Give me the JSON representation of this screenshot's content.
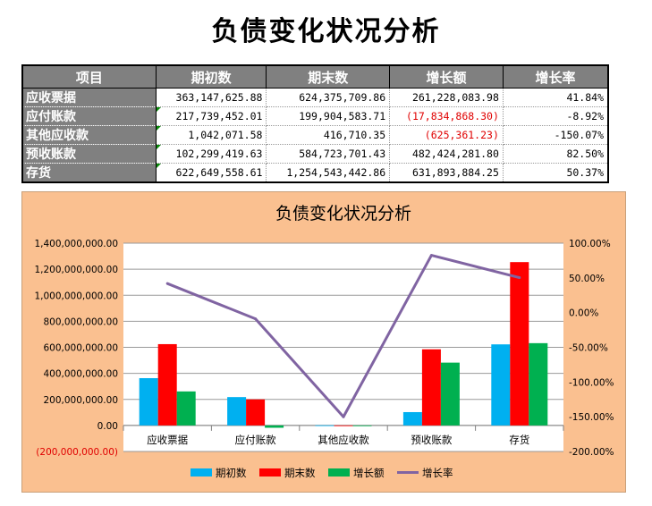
{
  "page_title": "负债变化状况分析",
  "table": {
    "headers": [
      "项目",
      "期初数",
      "期末数",
      "增长额",
      "增长率"
    ],
    "rows": [
      {
        "name": "应收票据",
        "begin": "363,147,625.88",
        "end": "624,375,709.86",
        "growth": "261,228,083.98",
        "rate": "41.84%",
        "growth_neg": false,
        "tri": false
      },
      {
        "name": "应付账款",
        "begin": "217,739,452.01",
        "end": "199,904,583.71",
        "growth": "(17,834,868.30)",
        "rate": "-8.92%",
        "growth_neg": true,
        "tri": true
      },
      {
        "name": "其他应收款",
        "begin": "1,042,071.58",
        "end": "416,710.35",
        "growth": "(625,361.23)",
        "rate": "-150.07%",
        "growth_neg": true,
        "tri": true
      },
      {
        "name": "预收账款",
        "begin": "102,299,419.63",
        "end": "584,723,701.43",
        "growth": "482,424,281.80",
        "rate": "82.50%",
        "growth_neg": false,
        "tri": true
      },
      {
        "name": "存货",
        "begin": "622,649,558.61",
        "end": "1,254,543,442.86",
        "growth": "631,893,884.25",
        "rate": "50.37%",
        "growth_neg": false,
        "tri": true
      }
    ]
  },
  "chart_data": {
    "type": "bar",
    "title": "负债变化状况分析",
    "categories": [
      "应收票据",
      "应付账款",
      "其他应收款",
      "预收账款",
      "存货"
    ],
    "series": [
      {
        "name": "期初数",
        "kind": "bar",
        "color": "#00b0f0",
        "values": [
          363147625.88,
          217739452.01,
          1042071.58,
          102299419.63,
          622649558.61
        ]
      },
      {
        "name": "期末数",
        "kind": "bar",
        "color": "#ff0000",
        "values": [
          624375709.86,
          199904583.71,
          416710.35,
          584723701.43,
          1254543442.86
        ]
      },
      {
        "name": "增长额",
        "kind": "bar",
        "color": "#00b050",
        "values": [
          261228083.98,
          -17834868.3,
          -625361.23,
          482424281.8,
          631893884.25
        ]
      },
      {
        "name": "增长率",
        "kind": "line",
        "axis": "right",
        "color": "#8064a2",
        "values": [
          41.84,
          -8.92,
          -150.07,
          82.5,
          50.37
        ]
      }
    ],
    "ylim": [
      -200000000,
      1400000000
    ],
    "y_ticks": [
      "1,400,000,000.00",
      "1,200,000,000.00",
      "1,000,000,000.00",
      "800,000,000.00",
      "600,000,000.00",
      "400,000,000.00",
      "200,000,000.00",
      "0.00",
      "(200,000,000.00)"
    ],
    "y2lim": [
      -200,
      100
    ],
    "y2_ticks": [
      "100.00%",
      "50.00%",
      "0.00%",
      "-50.00%",
      "-100.00%",
      "-150.00%",
      "-200.00%"
    ],
    "grid": true,
    "legend_position": "bottom"
  }
}
